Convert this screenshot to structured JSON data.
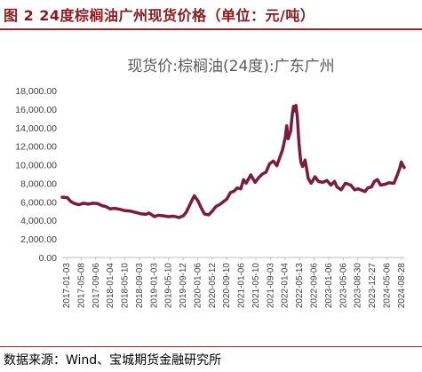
{
  "figure": {
    "title": "图 2 24度棕榈油广州现货价格（单位：元/吨）",
    "source": "数据来源：Wind、宝城期货金融研究所"
  },
  "chart_data": {
    "type": "line",
    "title": "现货价:棕榈油(24度):广东广州",
    "xlabel": "",
    "ylabel": "",
    "ylim": [
      0,
      18000
    ],
    "y_ticks": [
      0,
      2000,
      4000,
      6000,
      8000,
      10000,
      12000,
      14000,
      16000,
      18000
    ],
    "y_tick_labels": [
      "0.00",
      "2,000.00",
      "4,000.00",
      "6,000.00",
      "8,000.00",
      "10,000.00",
      "12,000.00",
      "14,000.00",
      "16,000.00",
      "18,000.00"
    ],
    "x_tick_labels": [
      "2017-01-03",
      "2017-05-08",
      "2017-09-06",
      "2018-01-04",
      "2018-05-10",
      "2018-09-03",
      "2019-01-03",
      "2019-05-10",
      "2019-09-12",
      "2020-01-06",
      "2020-05-12",
      "2020-09-10",
      "2021-01-06",
      "2021-05-10",
      "2021-09-03",
      "2022-01-04",
      "2022-05-13",
      "2022-09-06",
      "2023-01-06",
      "2023-05-06",
      "2023-08-30",
      "2023-12-27",
      "2024-05-06",
      "2024-08-28"
    ],
    "x_range": [
      "2017-01-03",
      "2024-11-22"
    ],
    "grid": false,
    "legend": "none",
    "line_color": "#7b1c3d",
    "series": [
      {
        "name": "",
        "points": [
          [
            "2017-01-03",
            6500
          ],
          [
            "2017-02-15",
            6450
          ],
          [
            "2017-03-15",
            6050
          ],
          [
            "2017-04-20",
            5800
          ],
          [
            "2017-05-25",
            5700
          ],
          [
            "2017-07-01",
            5850
          ],
          [
            "2017-08-10",
            5750
          ],
          [
            "2017-09-20",
            5850
          ],
          [
            "2017-11-01",
            5800
          ],
          [
            "2017-12-01",
            5600
          ],
          [
            "2018-01-04",
            5500
          ],
          [
            "2018-02-10",
            5250
          ],
          [
            "2018-03-20",
            5300
          ],
          [
            "2018-05-01",
            5200
          ],
          [
            "2018-06-15",
            5050
          ],
          [
            "2018-08-01",
            5000
          ],
          [
            "2018-09-15",
            4850
          ],
          [
            "2018-11-01",
            4700
          ],
          [
            "2018-12-10",
            4650
          ],
          [
            "2019-01-03",
            4800
          ],
          [
            "2019-02-20",
            4400
          ],
          [
            "2019-03-20",
            4550
          ],
          [
            "2019-05-01",
            4500
          ],
          [
            "2019-06-15",
            4400
          ],
          [
            "2019-08-01",
            4450
          ],
          [
            "2019-09-12",
            4300
          ],
          [
            "2019-10-20",
            4500
          ],
          [
            "2019-11-15",
            4900
          ],
          [
            "2019-12-10",
            5600
          ],
          [
            "2020-01-06",
            6300
          ],
          [
            "2020-01-20",
            6650
          ],
          [
            "2020-02-20",
            6100
          ],
          [
            "2020-03-20",
            5300
          ],
          [
            "2020-04-15",
            4700
          ],
          [
            "2020-05-20",
            4600
          ],
          [
            "2020-06-20",
            5000
          ],
          [
            "2020-07-20",
            5500
          ],
          [
            "2020-08-20",
            5700
          ],
          [
            "2020-09-20",
            6000
          ],
          [
            "2020-10-20",
            6300
          ],
          [
            "2020-11-20",
            7000
          ],
          [
            "2020-12-20",
            7150
          ],
          [
            "2021-01-15",
            7500
          ],
          [
            "2021-02-15",
            7400
          ],
          [
            "2021-03-10",
            8400
          ],
          [
            "2021-04-01",
            8000
          ],
          [
            "2021-05-10",
            8900
          ],
          [
            "2021-06-15",
            8100
          ],
          [
            "2021-07-15",
            8600
          ],
          [
            "2021-08-15",
            9000
          ],
          [
            "2021-09-15",
            9200
          ],
          [
            "2021-10-15",
            10100
          ],
          [
            "2021-11-15",
            10400
          ],
          [
            "2021-12-15",
            9900
          ],
          [
            "2022-01-10",
            10800
          ],
          [
            "2022-02-01",
            11600
          ],
          [
            "2022-02-25",
            13000
          ],
          [
            "2022-03-08",
            14200
          ],
          [
            "2022-03-20",
            12800
          ],
          [
            "2022-04-10",
            13600
          ],
          [
            "2022-04-25",
            15500
          ],
          [
            "2022-05-05",
            16300
          ],
          [
            "2022-05-13",
            15800
          ],
          [
            "2022-05-25",
            16400
          ],
          [
            "2022-06-05",
            15200
          ],
          [
            "2022-06-20",
            12200
          ],
          [
            "2022-07-05",
            10300
          ],
          [
            "2022-07-20",
            9800
          ],
          [
            "2022-08-10",
            10500
          ],
          [
            "2022-08-25",
            9400
          ],
          [
            "2022-09-06",
            8500
          ],
          [
            "2022-10-01",
            8000
          ],
          [
            "2022-11-01",
            8700
          ],
          [
            "2022-12-01",
            8200
          ],
          [
            "2023-01-06",
            8100
          ],
          [
            "2023-02-10",
            8300
          ],
          [
            "2023-03-15",
            7800
          ],
          [
            "2023-04-15",
            8200
          ],
          [
            "2023-05-06",
            7600
          ],
          [
            "2023-06-10",
            7300
          ],
          [
            "2023-07-15",
            8000
          ],
          [
            "2023-08-30",
            7800
          ],
          [
            "2023-10-01",
            7300
          ],
          [
            "2023-11-01",
            7400
          ],
          [
            "2023-12-27",
            7100
          ],
          [
            "2024-01-20",
            7500
          ],
          [
            "2024-02-20",
            7600
          ],
          [
            "2024-03-15",
            8200
          ],
          [
            "2024-04-10",
            8400
          ],
          [
            "2024-05-06",
            7800
          ],
          [
            "2024-06-15",
            7900
          ],
          [
            "2024-07-15",
            8050
          ],
          [
            "2024-08-28",
            8000
          ],
          [
            "2024-09-25",
            8900
          ],
          [
            "2024-10-15",
            9600
          ],
          [
            "2024-10-28",
            10300
          ],
          [
            "2024-11-08",
            10000
          ],
          [
            "2024-11-22",
            9700
          ]
        ]
      }
    ]
  }
}
